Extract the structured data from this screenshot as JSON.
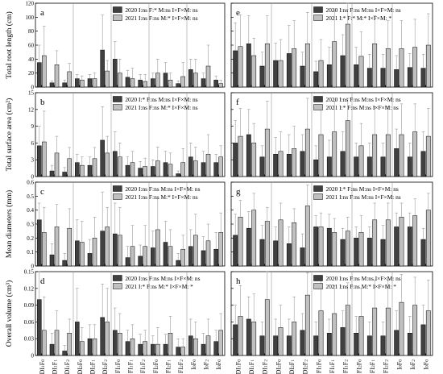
{
  "figure": {
    "ylabels": [
      "Total root length (cm)",
      "Total surface area (cm²)",
      "Mean diameters (mm)",
      "Overall volume (cm³)"
    ],
    "xticks": [
      "DI1F0",
      "DI1F1",
      "DI1F2",
      "DI2F0",
      "DI2F1",
      "DI2F2",
      "FI1F0",
      "FI1F1",
      "FI1F2",
      "FI2F0",
      "FI2F1",
      "FI2F2",
      "I0F0",
      "I0F2",
      "I0F0"
    ],
    "colors": {
      "y2020": "#404040",
      "y2021": "#c0c0c0"
    }
  },
  "chart_data": [
    {
      "id": "a",
      "type": "bar",
      "ylim": [
        0,
        120
      ],
      "yticks": [
        0,
        20,
        40,
        60,
        80,
        100,
        120
      ],
      "legend": [
        "2020 I:ns  F:*  M:ns  I×F×M: ns",
        "2021 I:ns  F:ns  M:*  I×F×M: ns"
      ],
      "categories": [
        "DI1F0",
        "DI1F1",
        "DI1F2",
        "DI2F0",
        "DI2F1",
        "DI2F2",
        "FI1F0",
        "FI1F1",
        "FI1F2",
        "FI2F0",
        "FI2F1",
        "FI2F2",
        "I0F0",
        "I0F2",
        "I0F0"
      ],
      "series": [
        {
          "values": [
            35,
            6,
            6,
            12,
            12,
            53,
            40,
            14,
            10,
            12,
            20,
            5,
            25,
            12,
            10
          ],
          "err": [
            25,
            3,
            4,
            6,
            6,
            50,
            25,
            10,
            8,
            8,
            15,
            4,
            15,
            8,
            6
          ]
        },
        {
          "values": [
            45,
            32,
            22,
            10,
            12,
            23,
            20,
            12,
            8,
            20,
            10,
            15,
            20,
            30,
            5
          ],
          "err": [
            42,
            20,
            12,
            6,
            8,
            15,
            20,
            15,
            10,
            20,
            10,
            20,
            20,
            30,
            5
          ]
        }
      ]
    },
    {
      "id": "e",
      "type": "bar",
      "ylim": [
        0,
        120
      ],
      "yticks": [
        0,
        20,
        40,
        60,
        80,
        100,
        120
      ],
      "legend": [
        "2020 I:ns  F:ns  M:ns  I×F×M: ns",
        "2021 I:*    F:*  M:*  I×F×M: *"
      ],
      "categories": [
        "DI1F0",
        "DI1F1",
        "DI1F2",
        "DI2F0",
        "DI2F1",
        "DI2F2",
        "FI1F0",
        "FI1F1",
        "FI1F2",
        "FI2F0",
        "FI2F1",
        "FI2F2",
        "I0F0",
        "I0F2",
        "I0F0"
      ],
      "series": [
        {
          "values": [
            52,
            62,
            30,
            38,
            48,
            30,
            22,
            32,
            45,
            32,
            27,
            27,
            25,
            28,
            27
          ],
          "err": [
            40,
            40,
            20,
            25,
            40,
            20,
            15,
            25,
            30,
            25,
            20,
            20,
            20,
            20,
            20
          ]
        },
        {
          "values": [
            58,
            45,
            62,
            38,
            55,
            62,
            38,
            65,
            90,
            44,
            62,
            55,
            55,
            57,
            60
          ],
          "err": [
            45,
            25,
            40,
            30,
            40,
            45,
            30,
            45,
            30,
            35,
            40,
            40,
            40,
            40,
            45
          ]
        }
      ]
    },
    {
      "id": "b",
      "type": "bar",
      "ylim": [
        0,
        15
      ],
      "yticks": [
        0,
        3,
        6,
        9,
        12,
        15
      ],
      "legend": [
        "2020 I:*   F:ns  M:ns  I×F×M: ns",
        "2021 I:ns  F:ns  M:*   I×F×M: ns"
      ],
      "categories": [
        "DI1F0",
        "DI1F1",
        "DI1F2",
        "DI2F0",
        "DI2F1",
        "DI2F2",
        "FI1F0",
        "FI1F1",
        "FI1F2",
        "FI2F0",
        "FI2F1",
        "FI2F2",
        "I0F0",
        "I0F2",
        "I0F0"
      ],
      "series": [
        {
          "values": [
            5.5,
            1.0,
            0.8,
            2.5,
            2.0,
            6.5,
            4.5,
            2.0,
            1.5,
            1.8,
            2.5,
            0.5,
            3.5,
            2.5,
            2.5
          ],
          "err": [
            3.5,
            1.0,
            0.8,
            1.5,
            1.5,
            6.0,
            3.5,
            1.5,
            1.2,
            1.2,
            2.0,
            0.5,
            2.5,
            2.0,
            1.5
          ]
        },
        {
          "values": [
            6.2,
            4.2,
            3.2,
            2.0,
            3.2,
            4.2,
            3.5,
            2.5,
            1.8,
            2.8,
            2.2,
            2.5,
            2.8,
            4.0,
            3.5
          ],
          "err": [
            5.5,
            3.0,
            2.0,
            1.5,
            2.0,
            3.0,
            2.5,
            2.0,
            1.5,
            2.5,
            2.0,
            2.5,
            2.5,
            3.5,
            2.0
          ]
        }
      ]
    },
    {
      "id": "f",
      "type": "bar",
      "ylim": [
        0,
        15
      ],
      "yticks": [
        0,
        3,
        6,
        9,
        12,
        15
      ],
      "legend": [
        "2020 I:ns  F:ns  M:ns  I×F×M: ns",
        "2021 I:*    F:ns  M:ns  I×F×M: ns"
      ],
      "categories": [
        "DI1F0",
        "DI1F1",
        "DI1F2",
        "DI2F0",
        "DI2F1",
        "DI2F2",
        "FI1F0",
        "FI1F1",
        "FI1F2",
        "FI2F0",
        "FI2F1",
        "FI2F2",
        "I0F0",
        "I0F2",
        "I0F0"
      ],
      "series": [
        {
          "values": [
            6.0,
            7.5,
            3.5,
            4.0,
            4.0,
            4.5,
            3.0,
            3.5,
            4.5,
            3.5,
            3.5,
            3.5,
            5.0,
            3.5,
            4.5
          ],
          "err": [
            4.0,
            4.5,
            2.0,
            3.0,
            3.5,
            3.0,
            2.5,
            3.0,
            3.5,
            2.5,
            2.5,
            2.5,
            3.5,
            2.5,
            3.5
          ]
        },
        {
          "values": [
            7.2,
            6.0,
            8.5,
            4.5,
            5.0,
            8.5,
            7.5,
            8.0,
            10.0,
            5.5,
            7.5,
            7.5,
            7.5,
            8.0,
            7.2
          ],
          "err": [
            5.0,
            3.5,
            5.0,
            3.5,
            4.0,
            5.5,
            5.0,
            5.5,
            4.0,
            4.0,
            5.0,
            5.0,
            5.5,
            5.0,
            5.0
          ]
        }
      ]
    },
    {
      "id": "c",
      "type": "bar",
      "ylim": [
        0,
        0.6
      ],
      "yticks": [
        0,
        0.1,
        0.2,
        0.3,
        0.4,
        0.5,
        0.6
      ],
      "legend": [
        "2020 I:ns  F:ns  M:ns  I×F×M: ns",
        "2021 I:ns  F:ns  M:*   I×F×M: ns"
      ],
      "categories": [
        "DI1F0",
        "DI1F1",
        "DI1F2",
        "DI2F0",
        "DI2F1",
        "DI2F2",
        "FI1F0",
        "FI1F1",
        "FI1F2",
        "FI2F0",
        "FI2F1",
        "FI2F2",
        "I0F0",
        "I0F2",
        "I0F0"
      ],
      "series": [
        {
          "values": [
            0.33,
            0.08,
            0.04,
            0.18,
            0.09,
            0.25,
            0.23,
            0.06,
            0.07,
            0.13,
            0.17,
            0.04,
            0.14,
            0.11,
            0.12
          ],
          "err": [
            0.12,
            0.08,
            0.05,
            0.15,
            0.1,
            0.28,
            0.22,
            0.08,
            0.08,
            0.12,
            0.15,
            0.05,
            0.12,
            0.1,
            0.12
          ]
        },
        {
          "values": [
            0.24,
            0.28,
            0.27,
            0.17,
            0.2,
            0.28,
            0.22,
            0.14,
            0.14,
            0.26,
            0.14,
            0.12,
            0.22,
            0.18,
            0.24
          ],
          "err": [
            0.18,
            0.16,
            0.14,
            0.15,
            0.15,
            0.14,
            0.2,
            0.15,
            0.15,
            0.22,
            0.12,
            0.1,
            0.15,
            0.12,
            0.14
          ]
        }
      ]
    },
    {
      "id": "g",
      "type": "bar",
      "ylim": [
        0,
        0.6
      ],
      "yticks": [
        0,
        0.1,
        0.2,
        0.3,
        0.4,
        0.5,
        0.6
      ],
      "legend": [
        "2020 I:*   F:ns  M:ns  I×F×M: ns",
        "2021 I:ns  F:ns  M:ns  I×F×M: ns"
      ],
      "categories": [
        "DI1F0",
        "DI1F1",
        "DI1F2",
        "DI2F0",
        "DI2F1",
        "DI2F2",
        "FI1F0",
        "FI1F1",
        "FI1F2",
        "FI2F0",
        "FI2F1",
        "FI2F2",
        "I0F0",
        "I0F2",
        "I0F0"
      ],
      "series": [
        {
          "values": [
            0.22,
            0.27,
            0.19,
            0.18,
            0.16,
            0.13,
            0.28,
            0.27,
            0.19,
            0.2,
            0.2,
            0.19,
            0.28,
            0.28,
            0.19
          ],
          "err": [
            0.15,
            0.12,
            0.1,
            0.1,
            0.12,
            0.1,
            0.08,
            0.1,
            0.08,
            0.08,
            0.08,
            0.1,
            0.1,
            0.1,
            0.08
          ]
        },
        {
          "values": [
            0.35,
            0.4,
            0.32,
            0.33,
            0.31,
            0.43,
            0.28,
            0.24,
            0.25,
            0.24,
            0.33,
            0.33,
            0.35,
            0.36,
            0.4
          ],
          "err": [
            0.12,
            0.12,
            0.1,
            0.12,
            0.1,
            0.15,
            0.1,
            0.1,
            0.1,
            0.12,
            0.12,
            0.12,
            0.1,
            0.12,
            0.12
          ]
        }
      ]
    },
    {
      "id": "d",
      "type": "bar",
      "ylim": [
        0,
        0.15
      ],
      "yticks": [
        0,
        0.03,
        0.06,
        0.09,
        0.12,
        0.15
      ],
      "legend": [
        "2020 I:ns  F:ns  M:ns  I×F×M: ns",
        "2021 I:*    F:ns  M:*   I×F×M: *"
      ],
      "categories": [
        "DI1F0",
        "DI1F1",
        "DI1F2",
        "DI2F0",
        "DI2F1",
        "DI2F2",
        "FI1F0",
        "FI1F1",
        "FI1F2",
        "FI2F0",
        "FI2F1",
        "FI2F2",
        "I0F0",
        "I0F2",
        "I0F0"
      ],
      "series": [
        {
          "values": [
            0.1,
            0.02,
            0.008,
            0.06,
            0.03,
            0.068,
            0.045,
            0.025,
            0.02,
            0.02,
            0.02,
            0.015,
            0.035,
            0.02,
            0.025
          ],
          "err": [
            0.05,
            0.02,
            0.01,
            0.06,
            0.025,
            0.06,
            0.04,
            0.02,
            0.018,
            0.015,
            0.018,
            0.015,
            0.03,
            0.02,
            0.02
          ]
        },
        {
          "values": [
            0.045,
            0.045,
            0.04,
            0.025,
            0.03,
            0.06,
            0.04,
            0.03,
            0.025,
            0.02,
            0.04,
            0.015,
            0.03,
            0.035,
            0.045
          ],
          "err": [
            0.06,
            0.035,
            0.025,
            0.025,
            0.025,
            0.06,
            0.035,
            0.025,
            0.02,
            0.03,
            0.03,
            0.015,
            0.03,
            0.03,
            0.03
          ]
        }
      ]
    },
    {
      "id": "h",
      "type": "bar",
      "ylim": [
        0,
        0.15
      ],
      "yticks": [
        0,
        0.03,
        0.06,
        0.09,
        0.12,
        0.15
      ],
      "legend": [
        "2020 I:ns  F:ns  M:ns  I×F×M: ns",
        "2021 I:ns  F:ns  M:*   I×F×M: *"
      ],
      "categories": [
        "DI1F0",
        "DI1F1",
        "DI1F2",
        "DI2F0",
        "DI2F1",
        "DI2F2",
        "FI1F0",
        "FI1F1",
        "FI1F2",
        "FI2F0",
        "FI2F1",
        "FI2F2",
        "I0F0",
        "I0F2",
        "I0F0"
      ],
      "series": [
        {
          "values": [
            0.055,
            0.065,
            0.035,
            0.035,
            0.035,
            0.045,
            0.035,
            0.04,
            0.05,
            0.04,
            0.035,
            0.035,
            0.045,
            0.04,
            0.055
          ],
          "err": [
            0.035,
            0.04,
            0.025,
            0.03,
            0.03,
            0.03,
            0.025,
            0.025,
            0.03,
            0.03,
            0.025,
            0.025,
            0.035,
            0.03,
            0.035
          ]
        },
        {
          "values": [
            0.07,
            0.06,
            0.1,
            0.05,
            0.06,
            0.108,
            0.08,
            0.075,
            0.09,
            0.07,
            0.085,
            0.085,
            0.095,
            0.09,
            0.08
          ],
          "err": [
            0.055,
            0.05,
            0.05,
            0.04,
            0.045,
            0.04,
            0.055,
            0.05,
            0.04,
            0.05,
            0.05,
            0.05,
            0.05,
            0.05,
            0.055
          ]
        }
      ]
    }
  ]
}
